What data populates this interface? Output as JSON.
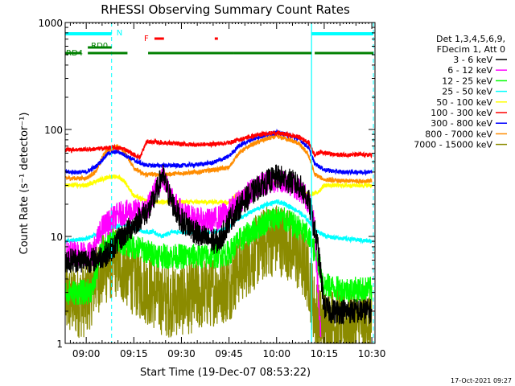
{
  "chart_data": {
    "type": "line",
    "title": "RHESSI Observing Summary Count Rates",
    "xlabel": "Start Time (19-Dec-07 08:53:22)",
    "ylabel": "Count Rate (s⁻¹ detector⁻¹)",
    "y_scale": "log",
    "ylim": [
      1,
      1000
    ],
    "xlim": [
      "08:53:22",
      "10:31:00"
    ],
    "x_ticks": [
      "09:00",
      "09:15",
      "09:30",
      "09:45",
      "10:00",
      "10:15",
      "10:30"
    ],
    "y_ticks": [
      "1",
      "10",
      "100",
      "1000"
    ],
    "legend_header": [
      "Det 1,3,4,5,6,9,",
      "FDecim 1, Att 0"
    ],
    "timestamp": "17-Oct-2021 09:27",
    "flags": {
      "night": "N",
      "flare": "F",
      "rd0": "RD0",
      "rd4": "RD4"
    },
    "series": [
      {
        "name": "3 - 6 keV",
        "color": "#000000",
        "points": [
          [
            "08:53:30",
            6
          ],
          [
            "09:00",
            6
          ],
          [
            "09:02",
            6
          ],
          [
            "09:07",
            7
          ],
          [
            "09:10",
            9
          ],
          [
            "09:14",
            12
          ],
          [
            "09:17",
            15
          ],
          [
            "09:20",
            18
          ],
          [
            "09:22",
            25
          ],
          [
            "09:24",
            38
          ],
          [
            "09:26",
            25
          ],
          [
            "09:28",
            18
          ],
          [
            "09:30",
            14
          ],
          [
            "09:33",
            12
          ],
          [
            "09:36",
            10
          ],
          [
            "09:40",
            9
          ],
          [
            "09:42",
            9
          ],
          [
            "09:45",
            14
          ],
          [
            "09:50",
            22
          ],
          [
            "09:55",
            30
          ],
          [
            "10:00",
            36
          ],
          [
            "10:03",
            34
          ],
          [
            "10:07",
            30
          ],
          [
            "10:10",
            22
          ],
          [
            "10:13",
            8
          ],
          [
            "10:15",
            2.2
          ],
          [
            "10:17",
            2
          ],
          [
            "10:22",
            2
          ],
          [
            "10:30",
            2
          ]
        ]
      },
      {
        "name": "6 - 12 keV",
        "color": "#ff00ff",
        "points": [
          [
            "08:53:30",
            7
          ],
          [
            "09:00",
            7
          ],
          [
            "09:02",
            7
          ],
          [
            "09:05",
            12
          ],
          [
            "09:10",
            16
          ],
          [
            "09:14",
            17
          ],
          [
            "09:18",
            17
          ],
          [
            "09:20",
            20
          ],
          [
            "09:22",
            28
          ],
          [
            "09:24",
            36
          ],
          [
            "09:26",
            28
          ],
          [
            "09:28",
            20
          ],
          [
            "09:30",
            17
          ],
          [
            "09:33",
            15
          ],
          [
            "09:36",
            14
          ],
          [
            "09:40",
            14
          ],
          [
            "09:45",
            17
          ],
          [
            "09:50",
            24
          ],
          [
            "09:55",
            30
          ],
          [
            "10:00",
            34
          ],
          [
            "10:03",
            33
          ],
          [
            "10:07",
            28
          ],
          [
            "10:10",
            22
          ],
          [
            "10:12",
            12
          ],
          [
            "10:14",
            1
          ]
        ]
      },
      {
        "name": "12 - 25 keV",
        "color": "#00ff00",
        "points": [
          [
            "08:53:30",
            3
          ],
          [
            "09:00",
            3
          ],
          [
            "09:02",
            3.2
          ],
          [
            "09:05",
            8
          ],
          [
            "09:10",
            9
          ],
          [
            "09:15",
            8
          ],
          [
            "09:18",
            7.5
          ],
          [
            "09:20",
            7
          ],
          [
            "09:25",
            6.5
          ],
          [
            "09:30",
            6.5
          ],
          [
            "09:35",
            6.5
          ],
          [
            "09:40",
            6.5
          ],
          [
            "09:45",
            7
          ],
          [
            "09:48",
            9
          ],
          [
            "09:52",
            11
          ],
          [
            "09:57",
            14
          ],
          [
            "10:00",
            15
          ],
          [
            "10:03",
            14
          ],
          [
            "10:07",
            12
          ],
          [
            "10:10",
            10
          ],
          [
            "10:13",
            6
          ],
          [
            "10:15",
            3.5
          ],
          [
            "10:20",
            3.2
          ],
          [
            "10:30",
            3.2
          ]
        ]
      },
      {
        "name": "25 - 50 keV",
        "color": "#00ffff",
        "points": [
          [
            "08:53:30",
            9
          ],
          [
            "09:00",
            9.5
          ],
          [
            "09:05",
            11
          ],
          [
            "09:08",
            12
          ],
          [
            "09:12",
            13
          ],
          [
            "09:15",
            12
          ],
          [
            "09:18",
            11
          ],
          [
            "09:21",
            11
          ],
          [
            "09:24",
            10
          ],
          [
            "09:27",
            11
          ],
          [
            "09:30",
            11
          ],
          [
            "09:35",
            11
          ],
          [
            "09:40",
            11
          ],
          [
            "09:45",
            12
          ],
          [
            "09:47",
            14
          ],
          [
            "09:52",
            17
          ],
          [
            "09:57",
            20
          ],
          [
            "10:00",
            21
          ],
          [
            "10:03",
            20
          ],
          [
            "10:07",
            17
          ],
          [
            "10:10",
            14
          ],
          [
            "10:13",
            11
          ],
          [
            "10:16",
            10
          ],
          [
            "10:22",
            9.5
          ],
          [
            "10:30",
            9
          ]
        ]
      },
      {
        "name": "50 - 100 keV",
        "color": "#ffff00",
        "points": [
          [
            "08:53:30",
            30
          ],
          [
            "09:00",
            30
          ],
          [
            "09:02",
            32
          ],
          [
            "09:07",
            36
          ],
          [
            "09:10",
            36
          ],
          [
            "09:12",
            33
          ],
          [
            "09:15",
            24
          ],
          [
            "09:18",
            22
          ],
          [
            "09:20",
            21
          ],
          [
            "09:25",
            21
          ],
          [
            "09:30",
            21
          ],
          [
            "09:35",
            21
          ],
          [
            "09:40",
            21
          ],
          [
            "09:45",
            21
          ],
          [
            "09:47",
            24
          ],
          [
            "09:52",
            28
          ],
          [
            "09:57",
            31
          ],
          [
            "10:00",
            32
          ],
          [
            "10:03",
            31
          ],
          [
            "10:07",
            28
          ],
          [
            "10:10",
            24
          ],
          [
            "10:13",
            26
          ],
          [
            "10:15",
            30
          ],
          [
            "10:20",
            30
          ],
          [
            "10:30",
            30
          ]
        ]
      },
      {
        "name": "100 - 300 keV",
        "color": "#ff0000",
        "points": [
          [
            "08:53:30",
            65
          ],
          [
            "09:00",
            65
          ],
          [
            "09:04",
            66
          ],
          [
            "09:08",
            68
          ],
          [
            "09:12",
            66
          ],
          [
            "09:15",
            58
          ],
          [
            "09:17",
            55
          ],
          [
            "09:19",
            77
          ],
          [
            "09:25",
            75
          ],
          [
            "09:30",
            73
          ],
          [
            "09:35",
            72
          ],
          [
            "09:40",
            73
          ],
          [
            "09:45",
            75
          ],
          [
            "09:48",
            80
          ],
          [
            "09:52",
            86
          ],
          [
            "09:57",
            92
          ],
          [
            "10:00",
            93
          ],
          [
            "10:03",
            90
          ],
          [
            "10:07",
            85
          ],
          [
            "10:10",
            76
          ],
          [
            "10:12",
            58
          ],
          [
            "10:14",
            62
          ],
          [
            "10:18",
            58
          ],
          [
            "10:30",
            58
          ]
        ]
      },
      {
        "name": "300 - 800 keV",
        "color": "#0000ff",
        "points": [
          [
            "08:53:30",
            40
          ],
          [
            "09:00",
            40
          ],
          [
            "09:03",
            45
          ],
          [
            "09:07",
            60
          ],
          [
            "09:10",
            62
          ],
          [
            "09:12",
            58
          ],
          [
            "09:15",
            52
          ],
          [
            "09:18",
            47
          ],
          [
            "09:20",
            46
          ],
          [
            "09:25",
            46
          ],
          [
            "09:30",
            46
          ],
          [
            "09:35",
            47
          ],
          [
            "09:40",
            49
          ],
          [
            "09:45",
            56
          ],
          [
            "09:48",
            70
          ],
          [
            "09:52",
            80
          ],
          [
            "09:57",
            90
          ],
          [
            "10:00",
            94
          ],
          [
            "10:03",
            90
          ],
          [
            "10:07",
            82
          ],
          [
            "10:10",
            68
          ],
          [
            "10:12",
            48
          ],
          [
            "10:15",
            42
          ],
          [
            "10:20",
            40
          ],
          [
            "10:30",
            40
          ]
        ]
      },
      {
        "name": "800 - 7000 keV",
        "color": "#ff8c00",
        "points": [
          [
            "08:53:30",
            35
          ],
          [
            "09:00",
            35
          ],
          [
            "09:03",
            40
          ],
          [
            "09:06",
            62
          ],
          [
            "09:10",
            70
          ],
          [
            "09:12",
            62
          ],
          [
            "09:15",
            44
          ],
          [
            "09:18",
            38
          ],
          [
            "09:20",
            38
          ],
          [
            "09:25",
            38
          ],
          [
            "09:30",
            39
          ],
          [
            "09:35",
            40
          ],
          [
            "09:40",
            42
          ],
          [
            "09:45",
            44
          ],
          [
            "09:48",
            60
          ],
          [
            "09:52",
            72
          ],
          [
            "09:57",
            82
          ],
          [
            "10:00",
            86
          ],
          [
            "10:03",
            82
          ],
          [
            "10:07",
            74
          ],
          [
            "10:10",
            58
          ],
          [
            "10:12",
            38
          ],
          [
            "10:15",
            34
          ],
          [
            "10:20",
            33
          ],
          [
            "10:30",
            33
          ]
        ]
      },
      {
        "name": "7000 - 15000 keV",
        "color": "#8b8b00",
        "points": [
          [
            "08:53:30",
            2.5
          ],
          [
            "09:00",
            2.5
          ],
          [
            "09:03",
            4
          ],
          [
            "09:06",
            5
          ],
          [
            "09:09",
            6
          ],
          [
            "09:12",
            5
          ],
          [
            "09:15",
            4
          ],
          [
            "09:18",
            3.5
          ],
          [
            "09:21",
            3
          ],
          [
            "09:25",
            2.5
          ],
          [
            "09:30",
            2.6
          ],
          [
            "09:35",
            2.8
          ],
          [
            "09:40",
            3.2
          ],
          [
            "09:45",
            3.5
          ],
          [
            "09:48",
            5
          ],
          [
            "09:52",
            6.5
          ],
          [
            "09:57",
            9
          ],
          [
            "10:00",
            9.5
          ],
          [
            "10:03",
            9
          ],
          [
            "10:07",
            6.5
          ],
          [
            "10:10",
            4.5
          ],
          [
            "10:12",
            2
          ],
          [
            "10:14",
            1.5
          ],
          [
            "10:20",
            1.5
          ],
          [
            "10:30",
            1.6
          ]
        ]
      }
    ],
    "night_intervals": [
      [
        "08:53:22",
        "09:08:00"
      ],
      [
        "10:11:00",
        "10:30:30"
      ]
    ],
    "rd0_intervals": [
      [
        "09:00:30",
        "09:08:00"
      ]
    ],
    "rd4_intervals": [
      [
        "08:53:22",
        "08:58:30"
      ],
      [
        "09:00:30",
        "09:13:00"
      ],
      [
        "09:19:30",
        "09:46:30"
      ],
      [
        "09:46:30",
        "10:11:00"
      ],
      [
        "10:12:00",
        "10:30:30"
      ]
    ],
    "flare_intervals": [
      [
        "09:21:30",
        "09:24:30"
      ],
      [
        "09:40:30",
        "09:41:30"
      ]
    ],
    "saa_lines": [
      "09:08:00",
      "10:30:30"
    ],
    "solid_vlines": [
      "10:11:00"
    ]
  }
}
